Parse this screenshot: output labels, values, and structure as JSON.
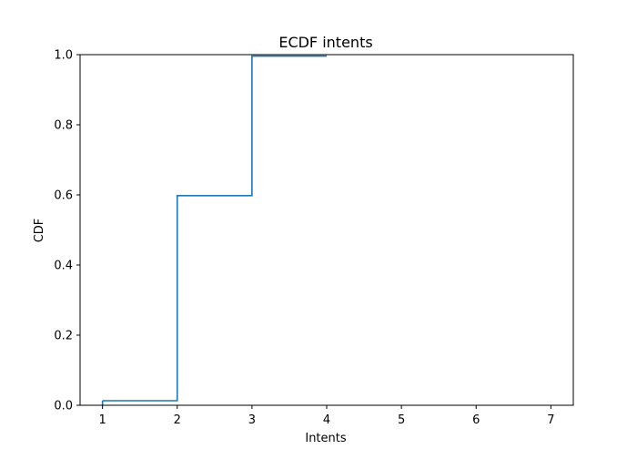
{
  "chart_data": {
    "type": "line",
    "title": "ECDF intents",
    "xlabel": "Intents",
    "ylabel": "CDF",
    "xlim": [
      0.7,
      7.3
    ],
    "ylim": [
      0.0,
      1.0
    ],
    "xticks": [
      1,
      2,
      3,
      4,
      5,
      6,
      7
    ],
    "xtick_labels": [
      "1",
      "2",
      "3",
      "4",
      "5",
      "6",
      "7"
    ],
    "yticks": [
      0.0,
      0.2,
      0.4,
      0.6,
      0.8,
      1.0
    ],
    "ytick_labels": [
      "0.0",
      "0.2",
      "0.4",
      "0.6",
      "0.8",
      "1.0"
    ],
    "grid": false,
    "series": [
      {
        "color": "#1f77b4",
        "drawstyle": "steps-post",
        "x": [
          1,
          2,
          3,
          4
        ],
        "y": [
          0.013,
          0.598,
          0.996,
          0.996
        ]
      }
    ]
  }
}
